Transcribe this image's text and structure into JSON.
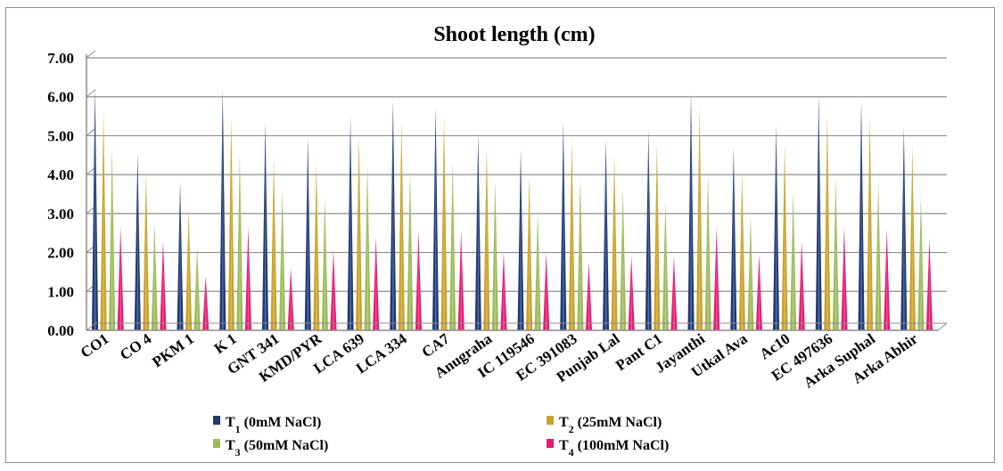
{
  "chart_data": {
    "type": "bar",
    "title": "Shoot length (cm)",
    "xlabel": "",
    "ylabel": "",
    "ylim": [
      0,
      7
    ],
    "ytick_labels": [
      "0.00",
      "1.00",
      "2.00",
      "3.00",
      "4.00",
      "5.00",
      "6.00",
      "7.00"
    ],
    "grid": true,
    "legend_position": "bottom",
    "categories": [
      "CO1",
      "CO 4",
      "PKM 1",
      "K 1",
      "GNT 341",
      "KMD/PYR",
      "LCA 639",
      "LCA 334",
      "CA7",
      "Anugraha",
      "IC 119546",
      "EC 391083",
      "Punjab Lal",
      "Pant C1",
      "Jayanthi",
      "Utkal Ava",
      "Ac10",
      "EC 497636",
      "Arka Suphal",
      "Arka Abhir"
    ],
    "series": [
      {
        "name": "T",
        "name_sub": "1",
        "name_suffix": " (0mM NaCl)",
        "color": "#1f3a75",
        "values": [
          6.25,
          4.55,
          3.8,
          6.2,
          5.35,
          4.95,
          5.5,
          5.9,
          5.75,
          5.05,
          4.65,
          5.35,
          4.9,
          5.15,
          6.1,
          4.7,
          5.25,
          6.05,
          5.9,
          5.2
        ]
      },
      {
        "name": "T",
        "name_sub": "2",
        "name_suffix": " (25mM NaCl)",
        "color": "#c9a227",
        "values": [
          5.65,
          4.05,
          3.1,
          5.45,
          4.4,
          4.3,
          5.0,
          5.4,
          5.5,
          4.7,
          3.95,
          4.9,
          4.5,
          4.8,
          5.75,
          4.05,
          4.8,
          5.55,
          5.5,
          4.75
        ]
      },
      {
        "name": "T",
        "name_sub": "3",
        "name_suffix": " (50mM NaCl)",
        "color": "#9bbb59",
        "values": [
          4.7,
          2.75,
          2.15,
          4.55,
          3.6,
          3.4,
          4.25,
          4.05,
          4.35,
          3.85,
          3.05,
          3.95,
          3.65,
          3.3,
          4.0,
          2.95,
          3.55,
          3.95,
          3.8,
          3.45
        ]
      },
      {
        "name": "T",
        "name_sub": "4",
        "name_suffix": " (100mM NaCl)",
        "color": "#e8196f",
        "values": [
          2.65,
          2.3,
          1.4,
          2.65,
          1.6,
          2.05,
          2.4,
          2.55,
          2.55,
          2.0,
          2.0,
          1.75,
          1.9,
          1.9,
          2.65,
          1.95,
          2.3,
          2.65,
          2.6,
          2.35
        ]
      }
    ]
  }
}
